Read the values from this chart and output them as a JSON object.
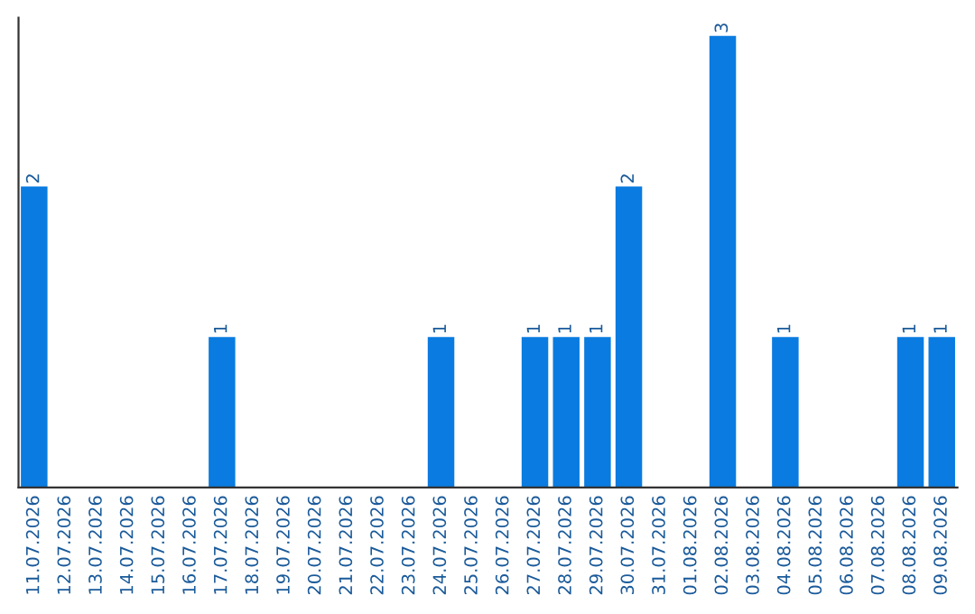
{
  "chart_data": {
    "type": "bar",
    "categories": [
      "11.07.2026",
      "12.07.2026",
      "13.07.2026",
      "14.07.2026",
      "15.07.2026",
      "16.07.2026",
      "17.07.2026",
      "18.07.2026",
      "19.07.2026",
      "20.07.2026",
      "21.07.2026",
      "22.07.2026",
      "23.07.2026",
      "24.07.2026",
      "25.07.2026",
      "26.07.2026",
      "27.07.2026",
      "28.07.2026",
      "29.07.2026",
      "30.07.2026",
      "31.07.2026",
      "01.08.2026",
      "02.08.2026",
      "03.08.2026",
      "04.08.2026",
      "05.08.2026",
      "06.08.2026",
      "07.08.2026",
      "08.08.2026",
      "09.08.2026"
    ],
    "values": [
      2,
      0,
      0,
      0,
      0,
      0,
      1,
      0,
      0,
      0,
      0,
      0,
      0,
      1,
      0,
      0,
      1,
      1,
      1,
      2,
      0,
      0,
      3,
      0,
      1,
      0,
      0,
      0,
      1,
      1
    ],
    "value_labels": [
      "2",
      null,
      null,
      null,
      null,
      null,
      "1",
      null,
      null,
      null,
      null,
      null,
      null,
      "1",
      null,
      null,
      "1",
      "1",
      "1",
      "2",
      null,
      null,
      "3",
      null,
      "1",
      null,
      null,
      null,
      "1",
      "1"
    ],
    "color": "#0a7be0",
    "tick_labels": "x",
    "grid": false
  }
}
